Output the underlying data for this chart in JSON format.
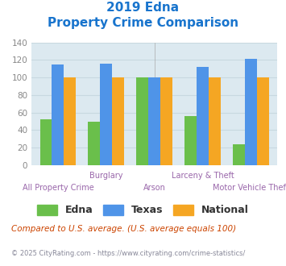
{
  "title_line1": "2019 Edna",
  "title_line2": "Property Crime Comparison",
  "title_color": "#1874cd",
  "categories": [
    "All Property Crime",
    "Burglary",
    "Arson",
    "Larceny & Theft",
    "Motor Vehicle Theft"
  ],
  "top_labels": [
    "",
    "Burglary",
    "",
    "Larceny & Theft",
    ""
  ],
  "bottom_labels": [
    "All Property Crime",
    "",
    "Arson",
    "",
    "Motor Vehicle Theft"
  ],
  "edna_values": [
    52,
    49,
    100,
    56,
    24
  ],
  "texas_values": [
    115,
    116,
    100,
    112,
    121
  ],
  "national_values": [
    100,
    100,
    100,
    100,
    100
  ],
  "edna_color": "#6abf4b",
  "texas_color": "#4f94e8",
  "national_color": "#f5a623",
  "ylim": [
    0,
    140
  ],
  "yticks": [
    0,
    20,
    40,
    60,
    80,
    100,
    120,
    140
  ],
  "grid_color": "#c8d8e0",
  "bg_color": "#dce9f0",
  "legend_labels": [
    "Edna",
    "Texas",
    "National"
  ],
  "footnote1": "Compared to U.S. average. (U.S. average equals 100)",
  "footnote2": "© 2025 CityRating.com - https://www.cityrating.com/crime-statistics/",
  "footnote1_color": "#cc4400",
  "footnote2_color": "#888899",
  "xlabel_color": "#9966aa",
  "ylabel_tick_color": "#888888"
}
